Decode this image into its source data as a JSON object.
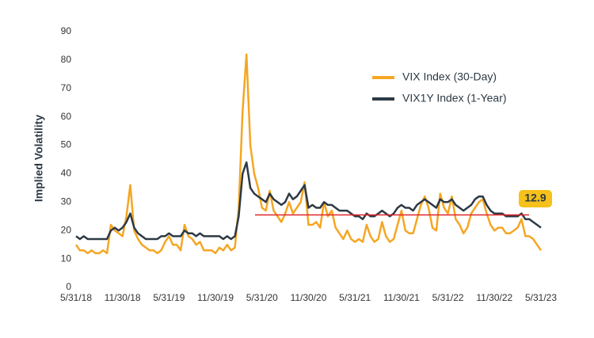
{
  "chart_data": {
    "type": "line",
    "y_label": "Implied Volatility",
    "categories": [
      "5/31/18",
      null,
      null,
      null,
      null,
      null,
      null,
      null,
      null,
      null,
      null,
      null,
      "11/30/18",
      null,
      null,
      null,
      null,
      null,
      null,
      null,
      null,
      null,
      null,
      null,
      "5/31/19",
      null,
      null,
      null,
      null,
      null,
      null,
      null,
      null,
      null,
      null,
      null,
      "11/30/19",
      null,
      null,
      null,
      null,
      null,
      null,
      null,
      null,
      null,
      null,
      null,
      "5/31/20",
      null,
      null,
      null,
      null,
      null,
      null,
      null,
      null,
      null,
      null,
      null,
      "11/30/20",
      null,
      null,
      null,
      null,
      null,
      null,
      null,
      null,
      null,
      null,
      null,
      "5/31/21",
      null,
      null,
      null,
      null,
      null,
      null,
      null,
      null,
      null,
      null,
      null,
      "11/30/21",
      null,
      null,
      null,
      null,
      null,
      null,
      null,
      null,
      null,
      null,
      null,
      "5/31/22",
      null,
      null,
      null,
      null,
      null,
      null,
      null,
      null,
      null,
      null,
      null,
      "11/30/22",
      null,
      null,
      null,
      null,
      null,
      null,
      null,
      null,
      null,
      null,
      null,
      "5/31/23"
    ],
    "series": [
      {
        "name": "VIX Index (30-Day)",
        "color": "#f5a623",
        "values": [
          15,
          13,
          13,
          12,
          13,
          12,
          12,
          13,
          12,
          22,
          20,
          19,
          18,
          25,
          36,
          20,
          17,
          15,
          14,
          13,
          13,
          12,
          13,
          16,
          18,
          15,
          15,
          13,
          22,
          18,
          17,
          15,
          16,
          13,
          13,
          13,
          12,
          14,
          13,
          15,
          13,
          14,
          28,
          62,
          82,
          50,
          40,
          35,
          28,
          27,
          34,
          27,
          25,
          23,
          26,
          30,
          26,
          28,
          30,
          37,
          22,
          22,
          23,
          21,
          30,
          25,
          27,
          21,
          19,
          17,
          20,
          17,
          16,
          17,
          16,
          22,
          18,
          16,
          17,
          23,
          18,
          16,
          17,
          22,
          27,
          20,
          19,
          19,
          24,
          29,
          32,
          28,
          21,
          20,
          33,
          28,
          26,
          32,
          24,
          22,
          19,
          21,
          26,
          28,
          30,
          31,
          26,
          22,
          20,
          21,
          21,
          19,
          19,
          20,
          21,
          24,
          18,
          18,
          17,
          15,
          13
        ]
      },
      {
        "name": "VIX1Y Index (1-Year)",
        "color": "#2d3a45",
        "values": [
          18,
          17,
          18,
          17,
          17,
          17,
          17,
          17,
          17,
          20,
          21,
          20,
          21,
          23,
          26,
          21,
          19,
          18,
          17,
          17,
          17,
          17,
          18,
          18,
          19,
          18,
          18,
          18,
          20,
          19,
          19,
          18,
          19,
          18,
          18,
          18,
          18,
          18,
          17,
          18,
          17,
          18,
          25,
          40,
          44,
          35,
          33,
          32,
          31,
          30,
          33,
          31,
          30,
          29,
          30,
          33,
          31,
          32,
          34,
          36,
          28,
          29,
          28,
          28,
          30,
          29,
          29,
          28,
          27,
          27,
          27,
          26,
          25,
          25,
          24,
          26,
          25,
          25,
          26,
          27,
          26,
          25,
          26,
          28,
          29,
          28,
          28,
          27,
          29,
          30,
          31,
          30,
          29,
          28,
          31,
          30,
          30,
          31,
          29,
          28,
          27,
          28,
          29,
          31,
          32,
          32,
          29,
          27,
          26,
          26,
          26,
          25,
          25,
          25,
          25,
          26,
          24,
          24,
          23,
          22,
          21
        ]
      }
    ],
    "reference_line": {
      "value": 25.5,
      "color": "#e0262b"
    },
    "annotation": "12.9",
    "ylim": [
      0,
      90
    ],
    "yticks": [
      0,
      10,
      20,
      30,
      40,
      50,
      60,
      70,
      80,
      90
    ],
    "grid": false
  }
}
